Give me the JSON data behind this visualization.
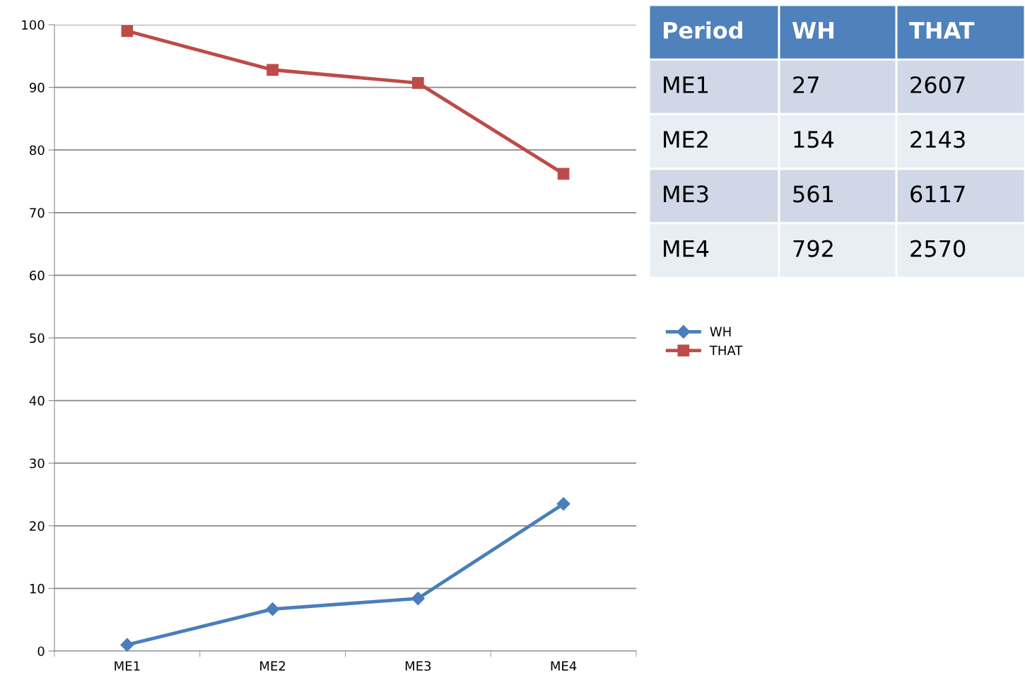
{
  "chart_data": [
    {
      "type": "line",
      "categories": [
        "ME1",
        "ME2",
        "ME3",
        "ME4"
      ],
      "series": [
        {
          "name": "WH",
          "color": "#4a7ebb",
          "values": [
            1.0,
            6.7,
            8.4,
            23.5
          ],
          "marker": "diamond"
        },
        {
          "name": "THAT",
          "color": "#be4b48",
          "values": [
            99.0,
            92.8,
            90.7,
            76.2
          ],
          "marker": "square"
        }
      ],
      "ylim": [
        0,
        100
      ],
      "yticks": [
        0,
        10,
        20,
        30,
        40,
        50,
        60,
        70,
        80,
        90,
        100
      ],
      "grid": "y",
      "legend": "right",
      "line_style": "solid"
    },
    {
      "type": "other",
      "categories": [
        "Period",
        "WH",
        "THAT"
      ],
      "y_categories": [
        "ME1",
        "ME2",
        "ME3",
        "ME4"
      ],
      "cell_labels": [
        [
          "27",
          "2607"
        ],
        [
          "154",
          "2143"
        ],
        [
          "561",
          "6117"
        ],
        [
          "792",
          "2570"
        ]
      ],
      "colors": [
        "#4f81bd",
        "#4f81bd",
        "#4f81bd"
      ]
    }
  ]
}
